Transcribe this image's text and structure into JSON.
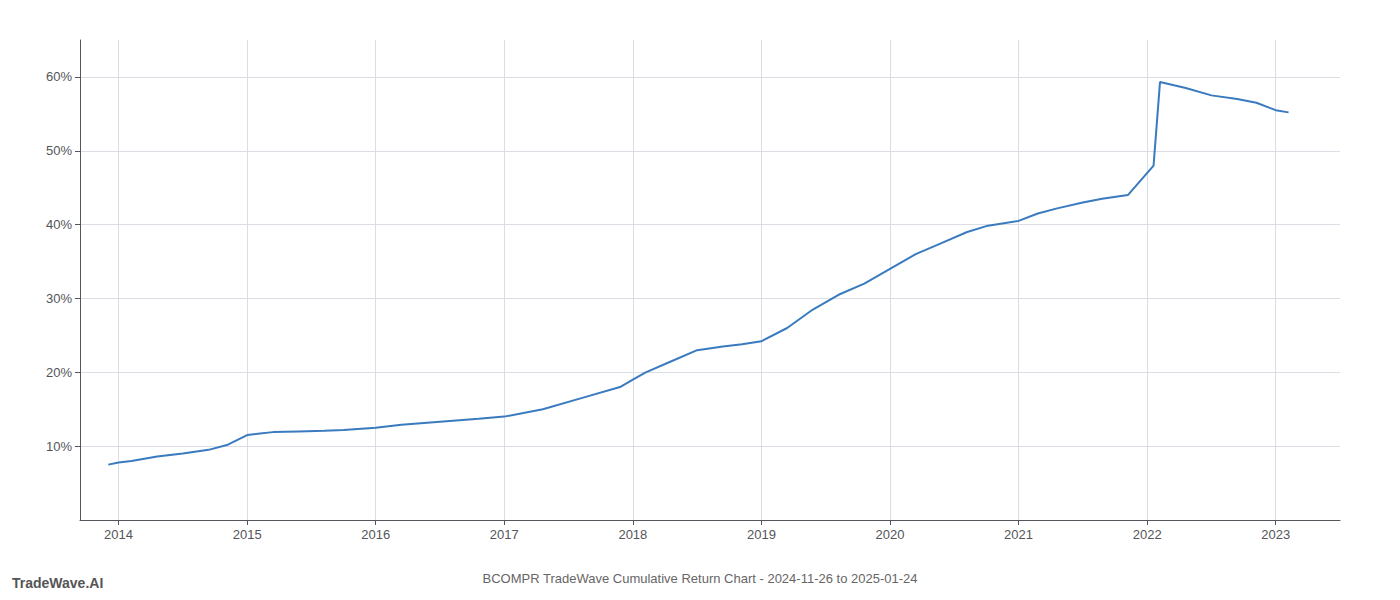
{
  "chart_data": {
    "type": "line",
    "title": "BCOMPR TradeWave Cumulative Return Chart - 2024-11-26 to 2025-01-24",
    "annotations": [
      "TradeWave.AI"
    ],
    "x": [
      2013.92,
      2014.0,
      2014.1,
      2014.2,
      2014.3,
      2014.5,
      2014.7,
      2014.85,
      2015.0,
      2015.1,
      2015.2,
      2015.4,
      2015.6,
      2015.75,
      2016.0,
      2016.2,
      2016.5,
      2016.8,
      2017.0,
      2017.3,
      2017.6,
      2017.9,
      2018.0,
      2018.1,
      2018.3,
      2018.5,
      2018.7,
      2018.85,
      2019.0,
      2019.2,
      2019.4,
      2019.6,
      2019.8,
      2020.0,
      2020.2,
      2020.4,
      2020.6,
      2020.75,
      2021.0,
      2021.15,
      2021.3,
      2021.5,
      2021.65,
      2021.85,
      2022.05,
      2022.1,
      2022.3,
      2022.5,
      2022.7,
      2022.85,
      2023.0,
      2023.1
    ],
    "values": [
      7.5,
      7.8,
      8.0,
      8.3,
      8.6,
      9.0,
      9.5,
      10.2,
      11.5,
      11.7,
      11.9,
      12.0,
      12.1,
      12.2,
      12.5,
      12.9,
      13.3,
      13.7,
      14.0,
      15.0,
      16.5,
      18.0,
      19.0,
      20.0,
      21.5,
      23.0,
      23.5,
      23.8,
      24.2,
      26.0,
      28.5,
      30.5,
      32.0,
      34.0,
      36.0,
      37.5,
      39.0,
      39.8,
      40.5,
      41.5,
      42.2,
      43.0,
      43.5,
      44.0,
      48.0,
      59.3,
      58.5,
      57.5,
      57.0,
      56.5,
      55.5,
      55.2
    ],
    "color": "#3a7abf",
    "xlim": [
      2013.7,
      2023.5
    ],
    "xticks": [
      2014,
      2015,
      2016,
      2017,
      2018,
      2019,
      2020,
      2021,
      2022,
      2023
    ],
    "ylim": [
      0,
      65
    ],
    "yticks": [
      {
        "value": 10,
        "label": "10%"
      },
      {
        "value": 20,
        "label": "20%"
      },
      {
        "value": 30,
        "label": "30%"
      },
      {
        "value": 40,
        "label": "40%"
      },
      {
        "value": 50,
        "label": "50%"
      },
      {
        "value": 60,
        "label": "60%"
      }
    ],
    "grid": true
  }
}
